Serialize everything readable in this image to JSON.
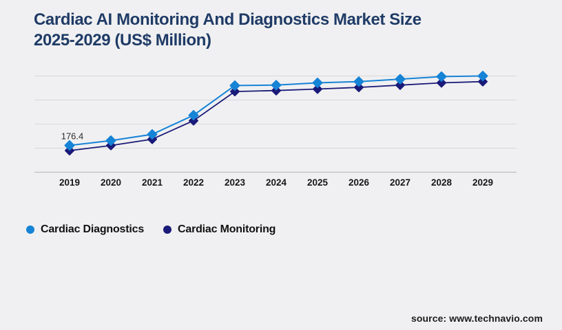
{
  "page": {
    "background_color": "#f0f0f2",
    "title_color": "#1f3b66",
    "grid_color": "#d8d8dc",
    "axis_color": "#bdbdc2"
  },
  "chart_data": {
    "type": "line",
    "title": "Cardiac AI Monitoring And Diagnostics Market Size 2025-2029 (US$ Million)",
    "title_lines": [
      "Cardiac AI Monitoring And Diagnostics Market Size",
      "2025-2029 (US$ Million)"
    ],
    "categories": [
      "2019",
      "2020",
      "2021",
      "2022",
      "2023",
      "2024",
      "2025",
      "2026",
      "2027",
      "2028",
      "2029"
    ],
    "series": [
      {
        "name": "Cardiac Diagnostics",
        "color": "#1583d6",
        "marker": "diamond",
        "values": [
          176.4,
          208,
          249,
          375,
          570,
          573,
          588,
          596,
          612,
          629,
          633
        ]
      },
      {
        "name": "Cardiac Monitoring",
        "color": "#1a1a78",
        "marker": "diamond",
        "values": [
          142,
          176,
          217,
          339,
          531,
          537,
          547,
          558,
          573,
          588,
          596
        ]
      }
    ],
    "point_label": {
      "text": "176.4",
      "category": "2019",
      "series": "Cardiac Diagnostics"
    },
    "xlabel": "",
    "ylabel": "",
    "ylim": [
      0,
      633
    ],
    "y_axis_tick_labels_visible": false,
    "grid": true,
    "legend_position": "bottom-left"
  },
  "footer": {
    "source_label": "source: www.technavio.com"
  }
}
